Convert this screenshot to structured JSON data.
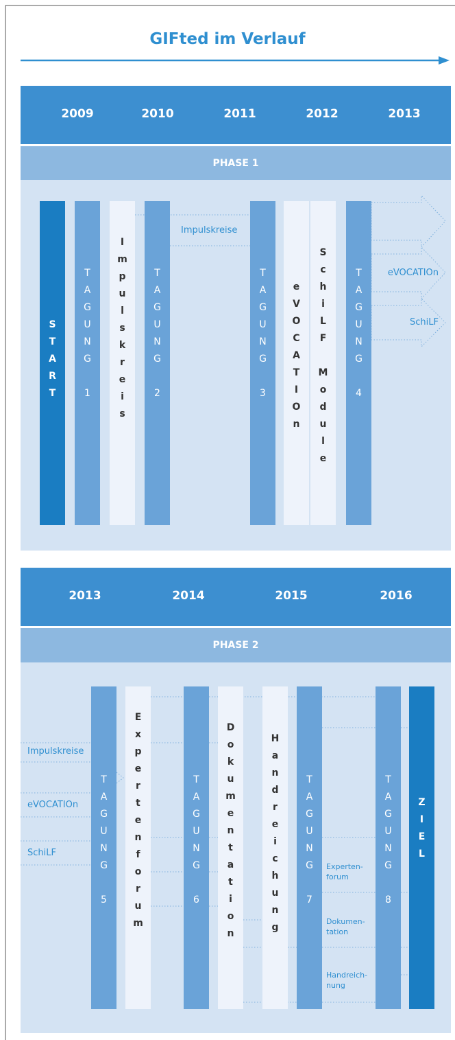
{
  "title": "GIFted im Verlauf",
  "phases": [
    {
      "label": "PHASE 1",
      "years": [
        "2009",
        "2010",
        "2011",
        "2012",
        "2013"
      ],
      "columns": [
        {
          "label": "START"
        },
        {
          "label": "TAGUNG 1"
        },
        {
          "label": "Impulskreis"
        },
        {
          "label": "TAGUNG 2"
        },
        {
          "label": "TAGUNG 3"
        },
        {
          "label": "eVOCATIOn"
        },
        {
          "label": "SchiLF Module"
        },
        {
          "label": "TAGUNG 4"
        }
      ],
      "streams": [
        "Impulskreise",
        "eVOCATIOn",
        "SchiLF"
      ]
    },
    {
      "label": "PHASE 2",
      "years": [
        "2013",
        "2014",
        "2015",
        "2016"
      ],
      "columns": [
        {
          "label": "TAGUNG 5"
        },
        {
          "label": "Expertenforum"
        },
        {
          "label": "TAGUNG 6"
        },
        {
          "label": "Dokumentation"
        },
        {
          "label": "Handreichung"
        },
        {
          "label": "TAGUNG 7"
        },
        {
          "label": "TAGUNG 8"
        },
        {
          "label": "ZIEL"
        }
      ],
      "streams": [
        "Impulskreise",
        "eVOCATIOn",
        "SchiLF"
      ],
      "notes": [
        [
          "Experten-",
          "forum"
        ],
        [
          "Dokumen-",
          "tation"
        ],
        [
          "Handreich-",
          "nung"
        ]
      ]
    }
  ]
}
